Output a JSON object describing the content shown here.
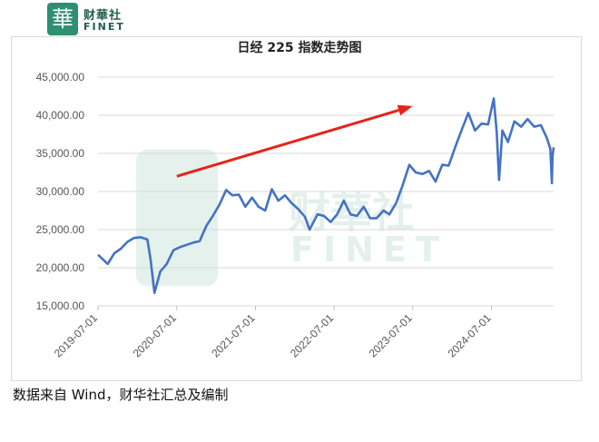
{
  "logo": {
    "glyph": "華",
    "cn": "财華社",
    "en": "FINET"
  },
  "watermark": {
    "cn": "财華社",
    "en": "FINET"
  },
  "chart_data": {
    "type": "line",
    "title": "日经 225 指数走势图",
    "xlabel": "",
    "ylabel": "",
    "x_ticks": [
      "2019-07-01",
      "2020-07-01",
      "2021-07-01",
      "2022-07-01",
      "2023-07-01",
      "2024-07-01"
    ],
    "y_ticks": [
      "15,000.00",
      "20,000.00",
      "25,000.00",
      "30,000.00",
      "35,000.00",
      "40,000.00",
      "45,000.00"
    ],
    "ylim": [
      15000,
      45000
    ],
    "xlim": [
      "2019-07-01",
      "2025-04-15"
    ],
    "grid": true,
    "legend": "none",
    "series": [
      {
        "color": "#4472c4",
        "points": [
          [
            "2019-07-01",
            21700
          ],
          [
            "2019-08-15",
            20500
          ],
          [
            "2019-09-15",
            21900
          ],
          [
            "2019-10-15",
            22500
          ],
          [
            "2019-11-15",
            23400
          ],
          [
            "2019-12-15",
            23900
          ],
          [
            "2020-01-15",
            24000
          ],
          [
            "2020-02-15",
            23700
          ],
          [
            "2020-03-01",
            21100
          ],
          [
            "2020-03-19",
            16700
          ],
          [
            "2020-04-15",
            19500
          ],
          [
            "2020-05-15",
            20500
          ],
          [
            "2020-06-15",
            22300
          ],
          [
            "2020-07-15",
            22700
          ],
          [
            "2020-08-15",
            23000
          ],
          [
            "2020-09-15",
            23300
          ],
          [
            "2020-10-15",
            23500
          ],
          [
            "2020-11-15",
            25500
          ],
          [
            "2020-12-15",
            26800
          ],
          [
            "2021-01-15",
            28300
          ],
          [
            "2021-02-15",
            30200
          ],
          [
            "2021-03-15",
            29500
          ],
          [
            "2021-04-15",
            29600
          ],
          [
            "2021-05-15",
            28000
          ],
          [
            "2021-06-15",
            29200
          ],
          [
            "2021-07-15",
            28000
          ],
          [
            "2021-08-15",
            27500
          ],
          [
            "2021-09-15",
            30300
          ],
          [
            "2021-10-15",
            28800
          ],
          [
            "2021-11-15",
            29500
          ],
          [
            "2021-12-15",
            28500
          ],
          [
            "2022-01-15",
            27700
          ],
          [
            "2022-02-15",
            26700
          ],
          [
            "2022-03-09",
            25000
          ],
          [
            "2022-04-15",
            27000
          ],
          [
            "2022-05-15",
            26800
          ],
          [
            "2022-06-15",
            26000
          ],
          [
            "2022-07-15",
            27000
          ],
          [
            "2022-08-15",
            28800
          ],
          [
            "2022-09-15",
            27000
          ],
          [
            "2022-10-15",
            26800
          ],
          [
            "2022-11-15",
            28000
          ],
          [
            "2022-12-15",
            26500
          ],
          [
            "2023-01-15",
            26500
          ],
          [
            "2023-02-15",
            27500
          ],
          [
            "2023-03-15",
            27000
          ],
          [
            "2023-04-15",
            28500
          ],
          [
            "2023-05-15",
            30800
          ],
          [
            "2023-06-15",
            33500
          ],
          [
            "2023-07-15",
            32500
          ],
          [
            "2023-08-15",
            32300
          ],
          [
            "2023-09-15",
            32700
          ],
          [
            "2023-10-15",
            31300
          ],
          [
            "2023-11-15",
            33500
          ],
          [
            "2023-12-15",
            33400
          ],
          [
            "2024-01-15",
            35900
          ],
          [
            "2024-02-15",
            38200
          ],
          [
            "2024-03-15",
            40300
          ],
          [
            "2024-04-15",
            38000
          ],
          [
            "2024-05-15",
            38900
          ],
          [
            "2024-06-15",
            38800
          ],
          [
            "2024-07-11",
            42200
          ],
          [
            "2024-07-25",
            37800
          ],
          [
            "2024-08-05",
            31500
          ],
          [
            "2024-08-20",
            38000
          ],
          [
            "2024-09-15",
            36500
          ],
          [
            "2024-10-15",
            39200
          ],
          [
            "2024-11-15",
            38500
          ],
          [
            "2024-12-15",
            39500
          ],
          [
            "2025-01-15",
            38500
          ],
          [
            "2025-02-15",
            38700
          ],
          [
            "2025-03-15",
            37000
          ],
          [
            "2025-03-31",
            35600
          ],
          [
            "2025-04-07",
            31100
          ],
          [
            "2025-04-10",
            34600
          ],
          [
            "2025-04-15",
            35800
          ]
        ]
      }
    ],
    "annotations": [
      {
        "type": "arrow",
        "color": "#e8221b",
        "from": [
          "2020-07-01",
          32000
        ],
        "to": [
          "2023-07-01",
          41200
        ]
      }
    ]
  },
  "footnote": "数据来自 Wind，财华社汇总及编制"
}
